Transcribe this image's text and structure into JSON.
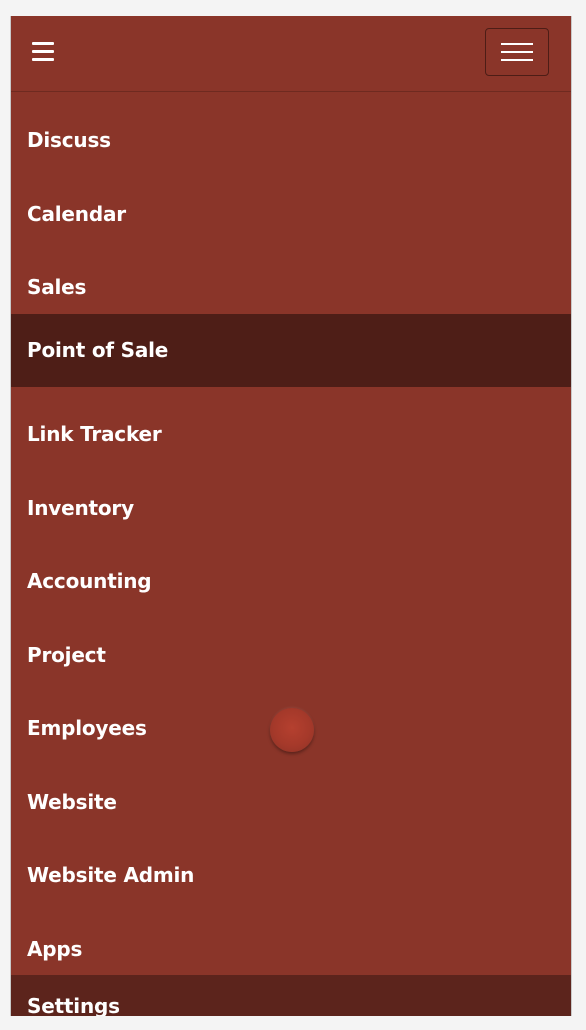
{
  "header": {
    "menu_icon": "hamburger-menu-icon",
    "toggler_icon": "navbar-toggler-icon"
  },
  "nav": {
    "items": [
      {
        "label": "Discuss",
        "active": false
      },
      {
        "label": "Calendar",
        "active": false
      },
      {
        "label": "Sales",
        "active": false
      },
      {
        "label": "Point of Sale",
        "active": true
      },
      {
        "label": "Link Tracker",
        "active": false
      },
      {
        "label": "Inventory",
        "active": false
      },
      {
        "label": "Accounting",
        "active": false
      },
      {
        "label": "Project",
        "active": false
      },
      {
        "label": "Employees",
        "active": false
      },
      {
        "label": "Website",
        "active": false
      },
      {
        "label": "Website Admin",
        "active": false
      },
      {
        "label": "Apps",
        "active": false
      },
      {
        "label": "Settings",
        "active": false
      }
    ]
  },
  "colors": {
    "background": "#8a3529",
    "active_item": "#4e1e17",
    "text": "#ffffff",
    "loading_indicator": "#a5392a"
  },
  "loading_indicator": {
    "icon": "loading-spinner-icon"
  }
}
